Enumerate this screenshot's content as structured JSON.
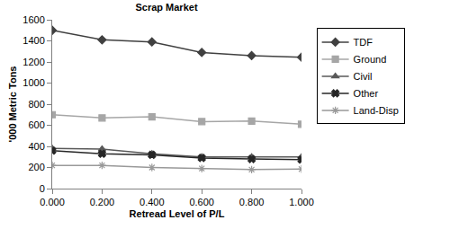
{
  "chart_data": {
    "type": "line",
    "title": "Scrap Market",
    "x_label": "Retread Level of P/L",
    "y_label": "'000 Metric Tons",
    "x": [
      0,
      0.2,
      0.4,
      0.6,
      0.8,
      1.0
    ],
    "xlim": [
      0,
      1.0
    ],
    "xticks": [
      {
        "value": 0,
        "label": "0.000"
      },
      {
        "value": 0.2,
        "label": "0.200"
      },
      {
        "value": 0.4,
        "label": "0.400"
      },
      {
        "value": 0.6,
        "label": "0.600"
      },
      {
        "value": 0.8,
        "label": "0.800"
      },
      {
        "value": 1.0,
        "label": "1.000"
      }
    ],
    "ylim": [
      0,
      1600
    ],
    "yticks": [
      0,
      200,
      400,
      600,
      800,
      1000,
      1200,
      1400,
      1600
    ],
    "grid": false,
    "legend": "right",
    "series": [
      {
        "name": "TDF",
        "color": "#404040",
        "marker": "diamond",
        "line_style": "solid",
        "values": [
          1500,
          1410,
          1390,
          1290,
          1260,
          1245
        ]
      },
      {
        "name": "Ground",
        "color": "#a6a6a6",
        "marker": "square",
        "line_style": "solid",
        "values": [
          700,
          670,
          680,
          635,
          640,
          610
        ]
      },
      {
        "name": "Civil",
        "color": "#595959",
        "marker": "triangle-up",
        "line_style": "solid",
        "values": [
          380,
          375,
          330,
          300,
          300,
          300
        ]
      },
      {
        "name": "Other",
        "color": "#262626",
        "marker": "x",
        "line_style": "solid",
        "values": [
          360,
          330,
          320,
          290,
          280,
          275
        ]
      },
      {
        "name": "Land-Disp",
        "color": "#999999",
        "marker": "asterisk",
        "line_style": "solid",
        "values": [
          220,
          220,
          200,
          190,
          180,
          185
        ]
      }
    ]
  }
}
